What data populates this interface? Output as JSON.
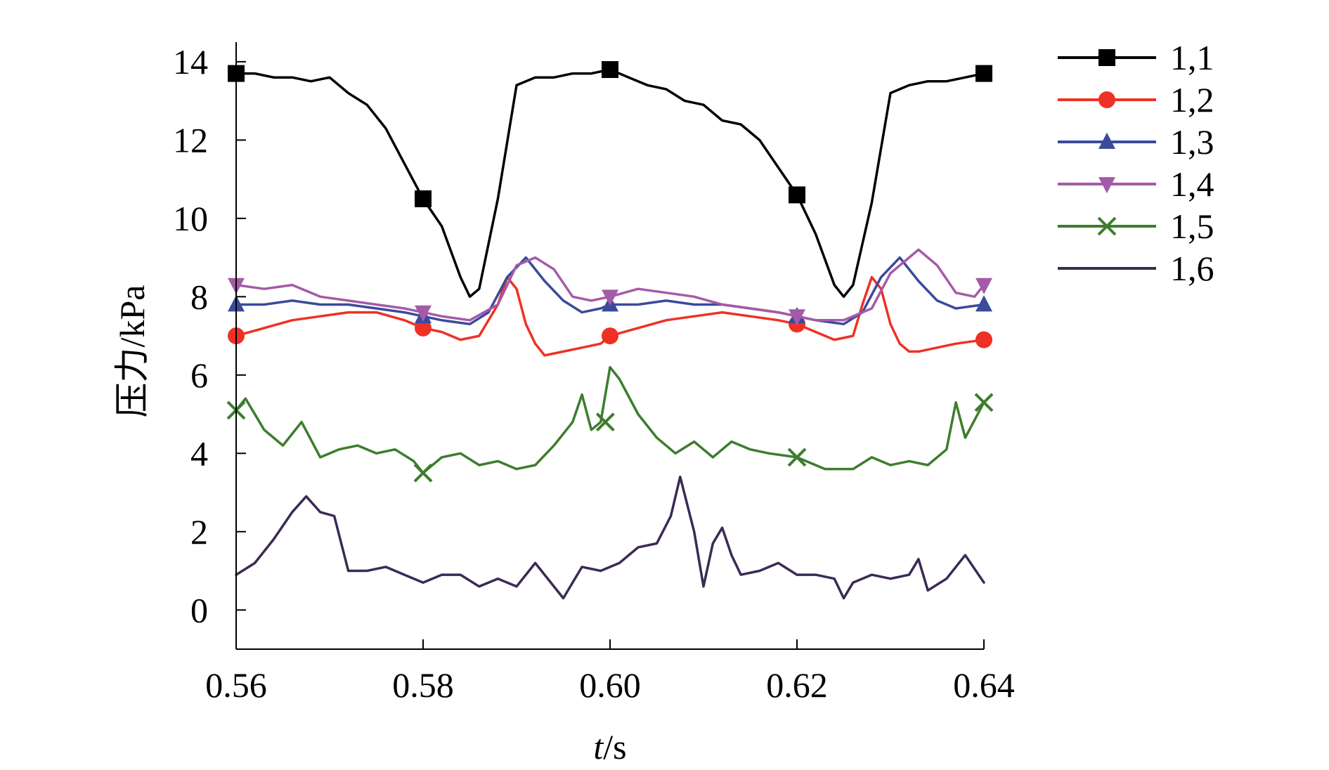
{
  "chart_data": {
    "type": "line",
    "title": "",
    "xlabel_italic": "t",
    "xlabel_rest": "/s",
    "ylabel": "压力/kPa",
    "xlim": [
      0.56,
      0.64
    ],
    "ylim": [
      -1,
      14.5
    ],
    "xticks": [
      "0.56",
      "0.58",
      "0.60",
      "0.62",
      "0.64"
    ],
    "xtick_values": [
      0.56,
      0.58,
      0.6,
      0.62,
      0.64
    ],
    "yticks": [
      "0",
      "2",
      "4",
      "6",
      "8",
      "10",
      "12",
      "14"
    ],
    "ytick_values": [
      0,
      2,
      4,
      6,
      8,
      10,
      12,
      14
    ],
    "grid": false,
    "legend_position": "right",
    "series": [
      {
        "name": "1,1",
        "color": "#000000",
        "marker": "square",
        "x": [
          0.56,
          0.562,
          0.564,
          0.566,
          0.568,
          0.57,
          0.572,
          0.574,
          0.576,
          0.578,
          0.58,
          0.582,
          0.584,
          0.585,
          0.586,
          0.588,
          0.59,
          0.592,
          0.594,
          0.596,
          0.598,
          0.6,
          0.602,
          0.604,
          0.606,
          0.608,
          0.61,
          0.612,
          0.614,
          0.616,
          0.618,
          0.62,
          0.622,
          0.624,
          0.625,
          0.626,
          0.628,
          0.63,
          0.632,
          0.634,
          0.636,
          0.638,
          0.64
        ],
        "y": [
          13.7,
          13.7,
          13.6,
          13.6,
          13.5,
          13.6,
          13.2,
          12.9,
          12.3,
          11.4,
          10.5,
          9.8,
          8.5,
          8.0,
          8.2,
          10.5,
          13.4,
          13.6,
          13.6,
          13.7,
          13.7,
          13.8,
          13.6,
          13.4,
          13.3,
          13.0,
          12.9,
          12.5,
          12.4,
          12.0,
          11.3,
          10.6,
          9.6,
          8.3,
          8.0,
          8.3,
          10.4,
          13.2,
          13.4,
          13.5,
          13.5,
          13.6,
          13.7
        ],
        "marker_x": [
          0.56,
          0.58,
          0.6,
          0.62,
          0.64
        ],
        "marker_y": [
          13.7,
          10.5,
          13.8,
          10.6,
          13.7
        ]
      },
      {
        "name": "1,2",
        "color": "#ee3124",
        "marker": "circle",
        "x": [
          0.56,
          0.563,
          0.566,
          0.569,
          0.572,
          0.575,
          0.578,
          0.58,
          0.582,
          0.584,
          0.586,
          0.588,
          0.589,
          0.59,
          0.591,
          0.592,
          0.593,
          0.595,
          0.597,
          0.599,
          0.6,
          0.603,
          0.606,
          0.609,
          0.612,
          0.615,
          0.618,
          0.62,
          0.622,
          0.624,
          0.626,
          0.627,
          0.628,
          0.629,
          0.63,
          0.631,
          0.632,
          0.633,
          0.635,
          0.637,
          0.64
        ],
        "y": [
          7.0,
          7.2,
          7.4,
          7.5,
          7.6,
          7.6,
          7.4,
          7.2,
          7.1,
          6.9,
          7.0,
          7.8,
          8.5,
          8.2,
          7.3,
          6.8,
          6.5,
          6.6,
          6.7,
          6.8,
          7.0,
          7.2,
          7.4,
          7.5,
          7.6,
          7.5,
          7.4,
          7.3,
          7.1,
          6.9,
          7.0,
          7.8,
          8.5,
          8.2,
          7.3,
          6.8,
          6.6,
          6.6,
          6.7,
          6.8,
          6.9
        ],
        "marker_x": [
          0.56,
          0.58,
          0.6,
          0.62,
          0.64
        ],
        "marker_y": [
          7.0,
          7.2,
          7.0,
          7.3,
          6.9
        ]
      },
      {
        "name": "1,3",
        "color": "#3b4a9a",
        "marker": "triangle-up",
        "x": [
          0.56,
          0.563,
          0.566,
          0.569,
          0.572,
          0.575,
          0.578,
          0.58,
          0.582,
          0.585,
          0.587,
          0.589,
          0.591,
          0.593,
          0.595,
          0.597,
          0.599,
          0.6,
          0.603,
          0.606,
          0.609,
          0.612,
          0.615,
          0.618,
          0.62,
          0.622,
          0.625,
          0.627,
          0.629,
          0.631,
          0.633,
          0.635,
          0.637,
          0.64
        ],
        "y": [
          7.8,
          7.8,
          7.9,
          7.8,
          7.8,
          7.7,
          7.6,
          7.5,
          7.4,
          7.3,
          7.6,
          8.5,
          9.0,
          8.4,
          7.9,
          7.6,
          7.7,
          7.8,
          7.8,
          7.9,
          7.8,
          7.8,
          7.7,
          7.6,
          7.5,
          7.4,
          7.3,
          7.6,
          8.5,
          9.0,
          8.4,
          7.9,
          7.7,
          7.8
        ],
        "marker_x": [
          0.56,
          0.58,
          0.6,
          0.62,
          0.64
        ],
        "marker_y": [
          7.8,
          7.5,
          7.8,
          7.5,
          7.8
        ]
      },
      {
        "name": "1,4",
        "color": "#a55aa8",
        "marker": "triangle-down",
        "x": [
          0.56,
          0.563,
          0.566,
          0.569,
          0.572,
          0.575,
          0.578,
          0.58,
          0.582,
          0.585,
          0.588,
          0.59,
          0.592,
          0.594,
          0.596,
          0.598,
          0.6,
          0.603,
          0.606,
          0.609,
          0.612,
          0.615,
          0.618,
          0.62,
          0.622,
          0.625,
          0.628,
          0.63,
          0.632,
          0.633,
          0.635,
          0.637,
          0.639,
          0.64
        ],
        "y": [
          8.3,
          8.2,
          8.3,
          8.0,
          7.9,
          7.8,
          7.7,
          7.6,
          7.5,
          7.4,
          7.8,
          8.8,
          9.0,
          8.7,
          8.0,
          7.9,
          8.0,
          8.2,
          8.1,
          8.0,
          7.8,
          7.7,
          7.6,
          7.5,
          7.4,
          7.4,
          7.7,
          8.6,
          9.0,
          9.2,
          8.8,
          8.1,
          8.0,
          8.3
        ],
        "marker_x": [
          0.56,
          0.58,
          0.6,
          0.62,
          0.64
        ],
        "marker_y": [
          8.3,
          7.6,
          8.0,
          7.5,
          8.3
        ]
      },
      {
        "name": "1,5",
        "color": "#3d7d2e",
        "marker": "x",
        "x": [
          0.56,
          0.561,
          0.563,
          0.565,
          0.567,
          0.569,
          0.571,
          0.573,
          0.575,
          0.577,
          0.579,
          0.58,
          0.582,
          0.584,
          0.586,
          0.588,
          0.59,
          0.592,
          0.594,
          0.596,
          0.597,
          0.598,
          0.599,
          0.6,
          0.601,
          0.603,
          0.605,
          0.607,
          0.609,
          0.611,
          0.613,
          0.615,
          0.617,
          0.62,
          0.623,
          0.626,
          0.628,
          0.63,
          0.632,
          0.634,
          0.636,
          0.637,
          0.638,
          0.64
        ],
        "y": [
          5.1,
          5.4,
          4.6,
          4.2,
          4.8,
          3.9,
          4.1,
          4.2,
          4.0,
          4.1,
          3.8,
          3.5,
          3.9,
          4.0,
          3.7,
          3.8,
          3.6,
          3.7,
          4.2,
          4.8,
          5.5,
          4.6,
          4.8,
          6.2,
          5.9,
          5.0,
          4.4,
          4.0,
          4.3,
          3.9,
          4.3,
          4.1,
          4.0,
          3.9,
          3.6,
          3.6,
          3.9,
          3.7,
          3.8,
          3.7,
          4.1,
          5.3,
          4.4,
          5.3
        ],
        "marker_x": [
          0.56,
          0.58,
          0.5995,
          0.62,
          0.64
        ],
        "marker_y": [
          5.1,
          3.5,
          4.8,
          3.9,
          5.3
        ]
      },
      {
        "name": "1,6",
        "color": "#3b2a55",
        "marker": "none",
        "x": [
          0.56,
          0.562,
          0.564,
          0.566,
          0.5675,
          0.569,
          0.5705,
          0.572,
          0.574,
          0.576,
          0.578,
          0.58,
          0.582,
          0.584,
          0.586,
          0.588,
          0.59,
          0.592,
          0.593,
          0.595,
          0.597,
          0.599,
          0.601,
          0.603,
          0.605,
          0.6065,
          0.6075,
          0.609,
          0.61,
          0.611,
          0.612,
          0.613,
          0.614,
          0.616,
          0.618,
          0.62,
          0.622,
          0.624,
          0.625,
          0.626,
          0.628,
          0.63,
          0.632,
          0.633,
          0.634,
          0.636,
          0.638,
          0.64
        ],
        "y": [
          0.9,
          1.2,
          1.8,
          2.5,
          2.9,
          2.5,
          2.4,
          1.0,
          1.0,
          1.1,
          0.9,
          0.7,
          0.9,
          0.9,
          0.6,
          0.8,
          0.6,
          1.2,
          0.9,
          0.3,
          1.1,
          1.0,
          1.2,
          1.6,
          1.7,
          2.4,
          3.4,
          2.0,
          0.6,
          1.7,
          2.1,
          1.4,
          0.9,
          1.0,
          1.2,
          0.9,
          0.9,
          0.8,
          0.3,
          0.7,
          0.9,
          0.8,
          0.9,
          1.3,
          0.5,
          0.8,
          1.4,
          0.7
        ],
        "marker_x": [],
        "marker_y": []
      }
    ]
  }
}
